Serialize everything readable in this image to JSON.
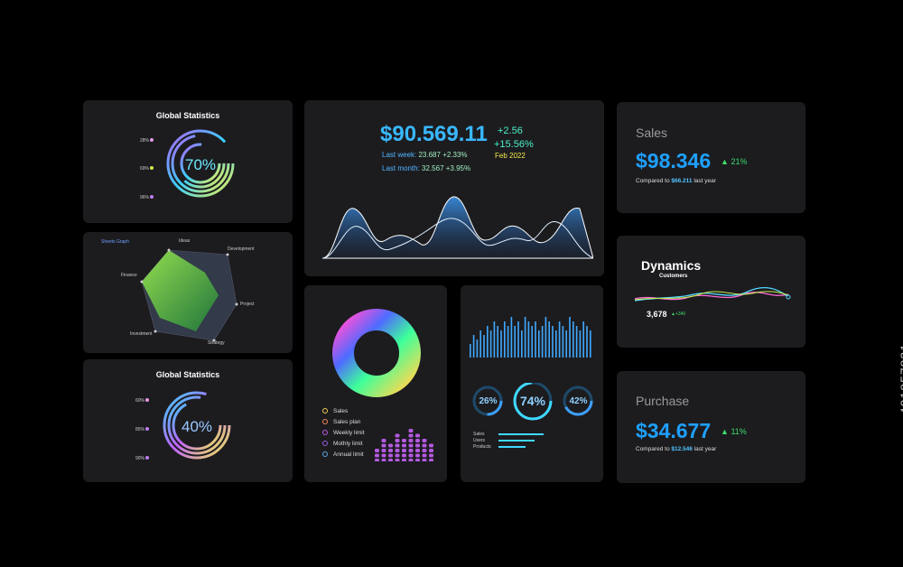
{
  "global_stats_top": {
    "title": "Global Statistics",
    "center": "70%",
    "rings": [
      {
        "label": "28%",
        "color": "#e59be8"
      },
      {
        "label": "69%",
        "color": "#d7e84b"
      },
      {
        "label": "96%",
        "color": "#c07df0"
      }
    ]
  },
  "radar": {
    "title": "Sheets Graph",
    "axes": [
      "Ideas",
      "Development",
      "Project",
      "Strategy",
      "Investment",
      "Finance"
    ]
  },
  "global_stats_bottom": {
    "title": "Global Statistics",
    "center": "40%",
    "rings": [
      {
        "label": "60%",
        "color": "#e59be8"
      },
      {
        "label": "85%",
        "color": "#c07df0"
      },
      {
        "label": "90%",
        "color": "#c07df0"
      }
    ]
  },
  "main": {
    "amount": "$90.569.11",
    "change1": "+2.56",
    "change2": "+15.56%",
    "date": "Feb 2022",
    "last_week_label": "Last week:",
    "last_week_value": "23.687",
    "last_week_pct": "+2.33%",
    "last_month_label": "Last month:",
    "last_month_value": "32.567",
    "last_month_pct": "+3.95%"
  },
  "donut_card": {
    "legend": [
      "Sales",
      "Sales plan",
      "Weekly limit",
      "Mothly limit",
      "Annual limit"
    ],
    "legend_colors": [
      "#f0c95a",
      "#f08a5a",
      "#c05ae0",
      "#9a5ae0",
      "#5aa8e0"
    ]
  },
  "bars_card": {
    "rings": [
      "26%",
      "74%",
      "42%"
    ],
    "labels": [
      "Sales",
      "Users",
      "Products"
    ]
  },
  "sales": {
    "title": "Sales",
    "value": "$98.346",
    "pct": "21%",
    "compare_prefix": "Compared to",
    "compare_value": "$66.211",
    "compare_suffix": "last year"
  },
  "dynamics": {
    "title": "Dynamics",
    "subtitle": "Customers",
    "value": "3,678",
    "delta": "+340"
  },
  "purchase": {
    "title": "Purchase",
    "value": "$34.677",
    "pct": "11%",
    "compare_prefix": "Compared to",
    "compare_value": "$12.546",
    "compare_suffix": "last year"
  },
  "watermark": "491857831",
  "chart_data": [
    {
      "type": "pie",
      "title": "Global Statistics",
      "values": [
        70,
        28,
        69,
        96
      ]
    },
    {
      "type": "area",
      "values": [
        2,
        6,
        3,
        4,
        5,
        3,
        8,
        4,
        6,
        3,
        7,
        2
      ]
    },
    {
      "type": "bar",
      "values": [
        3,
        5,
        4,
        6,
        5,
        7,
        6,
        8,
        7,
        6,
        8,
        7,
        9,
        7,
        8,
        6,
        9,
        8,
        7,
        8,
        6,
        7,
        9,
        8,
        7,
        6,
        8,
        7,
        6,
        9,
        8,
        7,
        6,
        8,
        7,
        6
      ]
    },
    {
      "type": "pie",
      "title": "Global Statistics",
      "values": [
        40,
        60,
        85,
        90
      ]
    }
  ]
}
